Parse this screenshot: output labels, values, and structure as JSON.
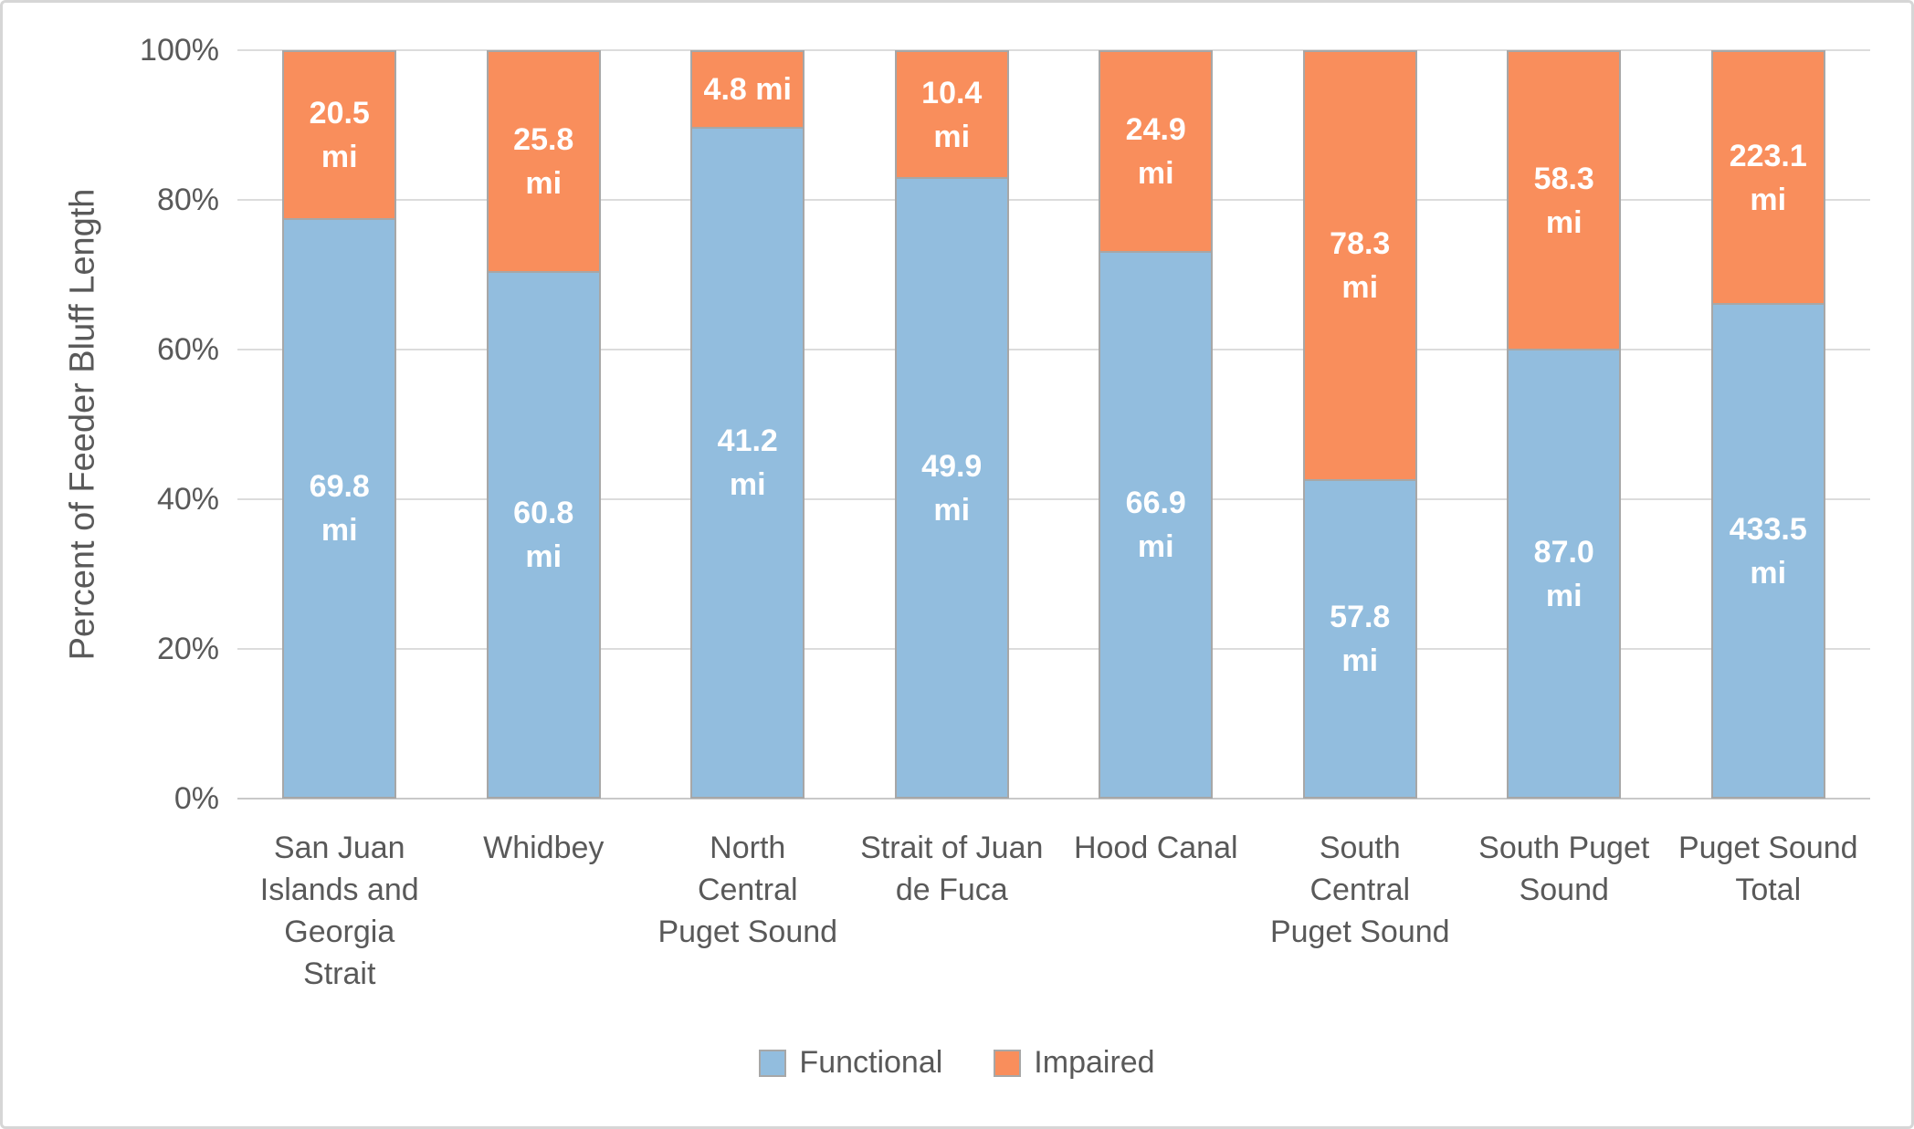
{
  "chart_data": {
    "type": "bar",
    "stacked": true,
    "percent_of_total": true,
    "ylabel": "Percent of Feeder Bluff Length",
    "ylim": [
      0,
      100
    ],
    "yticks": [
      "0%",
      "20%",
      "40%",
      "60%",
      "80%",
      "100%"
    ],
    "grid": true,
    "legend_position": "bottom",
    "unit": "mi",
    "categories": [
      "San Juan\nIslands and\nGeorgia\nStrait",
      "Whidbey",
      "North\nCentral\nPuget Sound",
      "Strait of Juan\nde Fuca",
      "Hood Canal",
      "South\nCentral\nPuget Sound",
      "South Puget\nSound",
      "Puget Sound\nTotal"
    ],
    "series": [
      {
        "name": "Functional",
        "color": "#92bdde",
        "values": [
          69.8,
          60.8,
          41.2,
          49.9,
          66.9,
          57.8,
          87.0,
          433.5
        ],
        "labels": [
          "69.8\nmi",
          "60.8\nmi",
          "41.2\nmi",
          "49.9\nmi",
          "66.9\nmi",
          "57.8\nmi",
          "87.0\nmi",
          "433.5\nmi"
        ]
      },
      {
        "name": "Impaired",
        "color": "#f98e5c",
        "values": [
          20.5,
          25.8,
          4.8,
          10.4,
          24.9,
          78.3,
          58.3,
          223.1
        ],
        "labels": [
          "20.5\nmi",
          "25.8\nmi",
          "4.8 mi",
          "10.4\nmi",
          "24.9\nmi",
          "78.3\nmi",
          "58.3\nmi",
          "223.1\nmi"
        ]
      }
    ],
    "functional_percent_by_category": [
      77.3,
      70.2,
      89.6,
      82.8,
      72.9,
      42.5,
      59.9,
      66.0
    ]
  },
  "style_colors": {
    "bar_border": "#a7a7a7",
    "gridline": "#dcdcdc",
    "axis_text": "#595959",
    "data_label_text": "#ffffff",
    "frame_border": "#d6d6d6"
  }
}
